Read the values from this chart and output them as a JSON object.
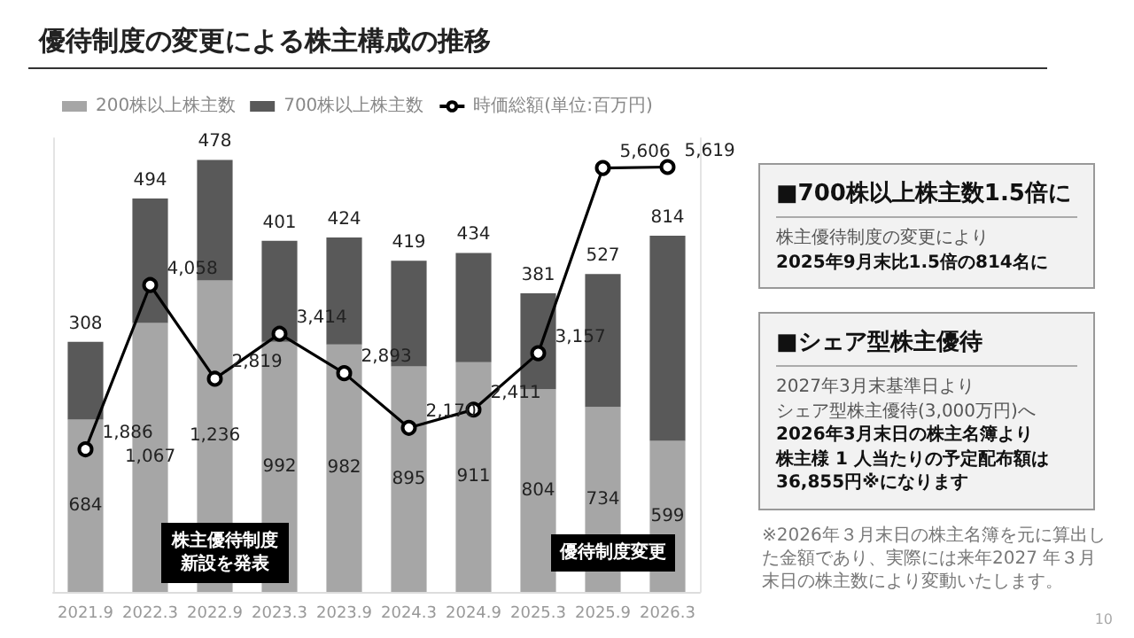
{
  "chart_data": [
    {
      "type": "bar",
      "title": "優待制度の変更による株主構成の推移",
      "categories": [
        "2021.9",
        "2022.3",
        "2022.9",
        "2023.3",
        "2023.9",
        "2024.3",
        "2024.9",
        "2025.3",
        "2025.9",
        "2026.3"
      ],
      "stacked": true,
      "series": [
        {
          "name": "200株以上株主数",
          "color": "#a6a6a6",
          "values": [
            684,
            1067,
            1236,
            992,
            982,
            895,
            911,
            804,
            734,
            599
          ],
          "value_labels": [
            "684",
            "1,067",
            "1,236",
            "992",
            "982",
            "895",
            "911",
            "804",
            "734",
            "599"
          ]
        },
        {
          "name": "700株以上株主数",
          "color": "#595959",
          "values": [
            308,
            494,
            478,
            401,
            424,
            419,
            434,
            381,
            527,
            814
          ],
          "value_labels": [
            "308",
            "494",
            "478",
            "401",
            "424",
            "419",
            "434",
            "381",
            "527",
            "814"
          ]
        },
        {
          "name": "時価総額(単位:百万円)",
          "type": "line",
          "axis": "y2",
          "color": "#000000",
          "values": [
            1886,
            4058,
            2819,
            3414,
            2893,
            2170,
            2411,
            3157,
            5606,
            5619
          ],
          "value_labels": [
            "1,886",
            "4,058",
            "2,819",
            "3,414",
            "2,893",
            "2,170",
            "2,411",
            "3,157",
            "5,606",
            "5,619"
          ]
        }
      ],
      "ylim": [
        0,
        1800
      ],
      "y2lim": [
        0,
        6000
      ],
      "tick_labels": "x",
      "legend": "top left",
      "grid": false,
      "marker": "circle",
      "line_style": "solid",
      "annotations": [
        "株主優待制度新設を発表",
        "優待制度変更",
        "※2026年３月末日の株主名簿を元に算出した金額であり、実際には来年2027 年３月末日の株主数により変動いたします。",
        "10"
      ]
    },
    {
      "type": "other",
      "title": "■700株以上株主数1.5倍に",
      "subtitle": "株主優待制度の変更により",
      "annotations": [
        "2025年9月末比1.5倍の814名に"
      ]
    },
    {
      "type": "other",
      "title": "■シェア型株主優待",
      "subtitle": "2027年3月末基準日より",
      "annotations": [
        "シェア型株主優待(3,000万円)へ",
        "2026年3月末日の株主名簿より",
        "株主様 1 人当たりの予定配布額は",
        "36,855円※になります"
      ]
    }
  ]
}
